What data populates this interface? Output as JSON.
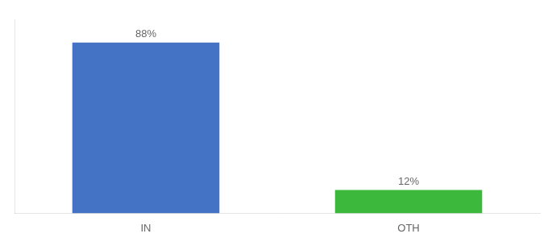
{
  "chart_data": {
    "type": "bar",
    "categories": [
      "IN",
      "OTH"
    ],
    "values": [
      88,
      12
    ],
    "value_labels": [
      "88%",
      "12%"
    ],
    "colors": [
      "#4472c4",
      "#3cb83c"
    ],
    "ylim": [
      0,
      100
    ],
    "grid": false,
    "data_labels": true,
    "tick_labels": "x"
  }
}
